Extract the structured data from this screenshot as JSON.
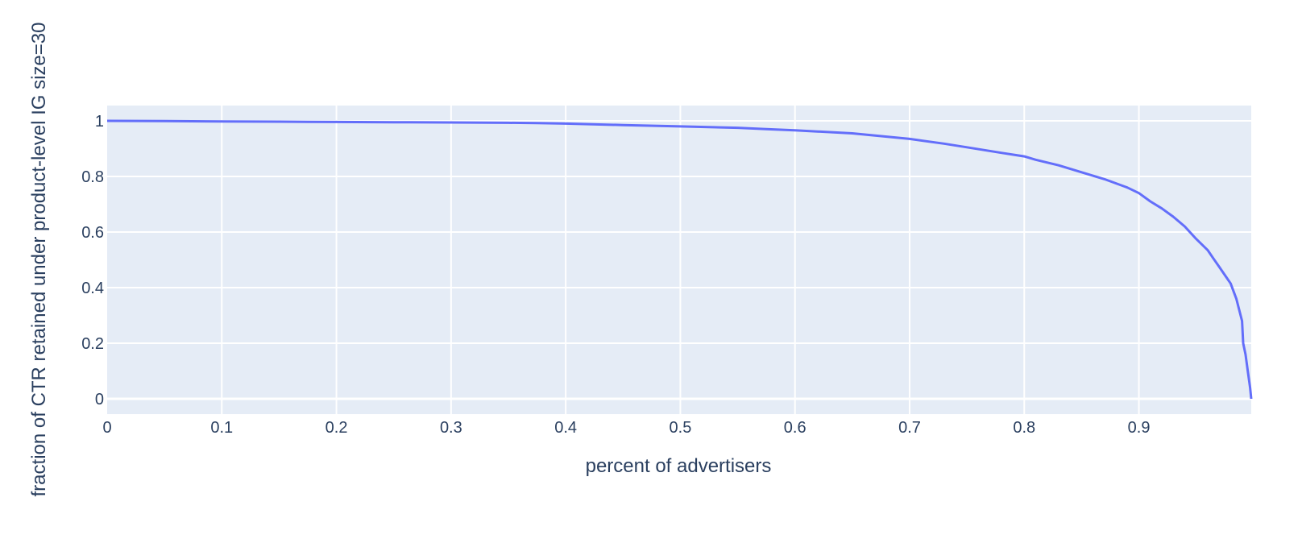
{
  "colors": {
    "plot_background": "#e5ecf6",
    "grid": "#ffffff",
    "line": "#636efa",
    "text": "#2a3f5f"
  },
  "chart_data": {
    "type": "line",
    "title": "",
    "xlabel": "percent of advertisers",
    "ylabel": "fraction of CTR retained under product-level IG size=30",
    "xlim": [
      0,
      0.998
    ],
    "ylim": [
      -0.055,
      1.055
    ],
    "xticks": [
      0,
      0.1,
      0.2,
      0.3,
      0.4,
      0.5,
      0.6,
      0.7,
      0.8,
      0.9
    ],
    "xtick_labels": [
      "0",
      "0.1",
      "0.2",
      "0.3",
      "0.4",
      "0.5",
      "0.6",
      "0.7",
      "0.8",
      "0.9"
    ],
    "yticks": [
      0,
      0.2,
      0.4,
      0.6,
      0.8,
      1
    ],
    "ytick_labels": [
      "0",
      "0.2",
      "0.4",
      "0.6",
      "0.8",
      "1"
    ],
    "grid": true,
    "legend": "none",
    "series": [
      {
        "x": [
          0,
          0.05,
          0.1,
          0.15,
          0.2,
          0.25,
          0.3,
          0.35,
          0.375,
          0.4,
          0.45,
          0.5,
          0.55,
          0.575,
          0.6,
          0.65,
          0.7,
          0.73,
          0.75,
          0.78,
          0.8,
          0.81,
          0.83,
          0.85,
          0.87,
          0.89,
          0.9,
          0.91,
          0.92,
          0.93,
          0.94,
          0.95,
          0.96,
          0.965,
          0.97,
          0.975,
          0.98,
          0.985,
          0.99,
          0.991,
          0.993,
          0.995,
          0.997,
          0.998
        ],
        "y": [
          1.0,
          0.999,
          0.998,
          0.997,
          0.996,
          0.995,
          0.994,
          0.993,
          0.992,
          0.99,
          0.985,
          0.98,
          0.975,
          0.97,
          0.966,
          0.955,
          0.935,
          0.918,
          0.905,
          0.885,
          0.872,
          0.86,
          0.84,
          0.815,
          0.79,
          0.76,
          0.74,
          0.71,
          0.685,
          0.655,
          0.62,
          0.575,
          0.535,
          0.505,
          0.475,
          0.445,
          0.415,
          0.36,
          0.28,
          0.2,
          0.16,
          0.1,
          0.04,
          0.0
        ]
      }
    ]
  }
}
